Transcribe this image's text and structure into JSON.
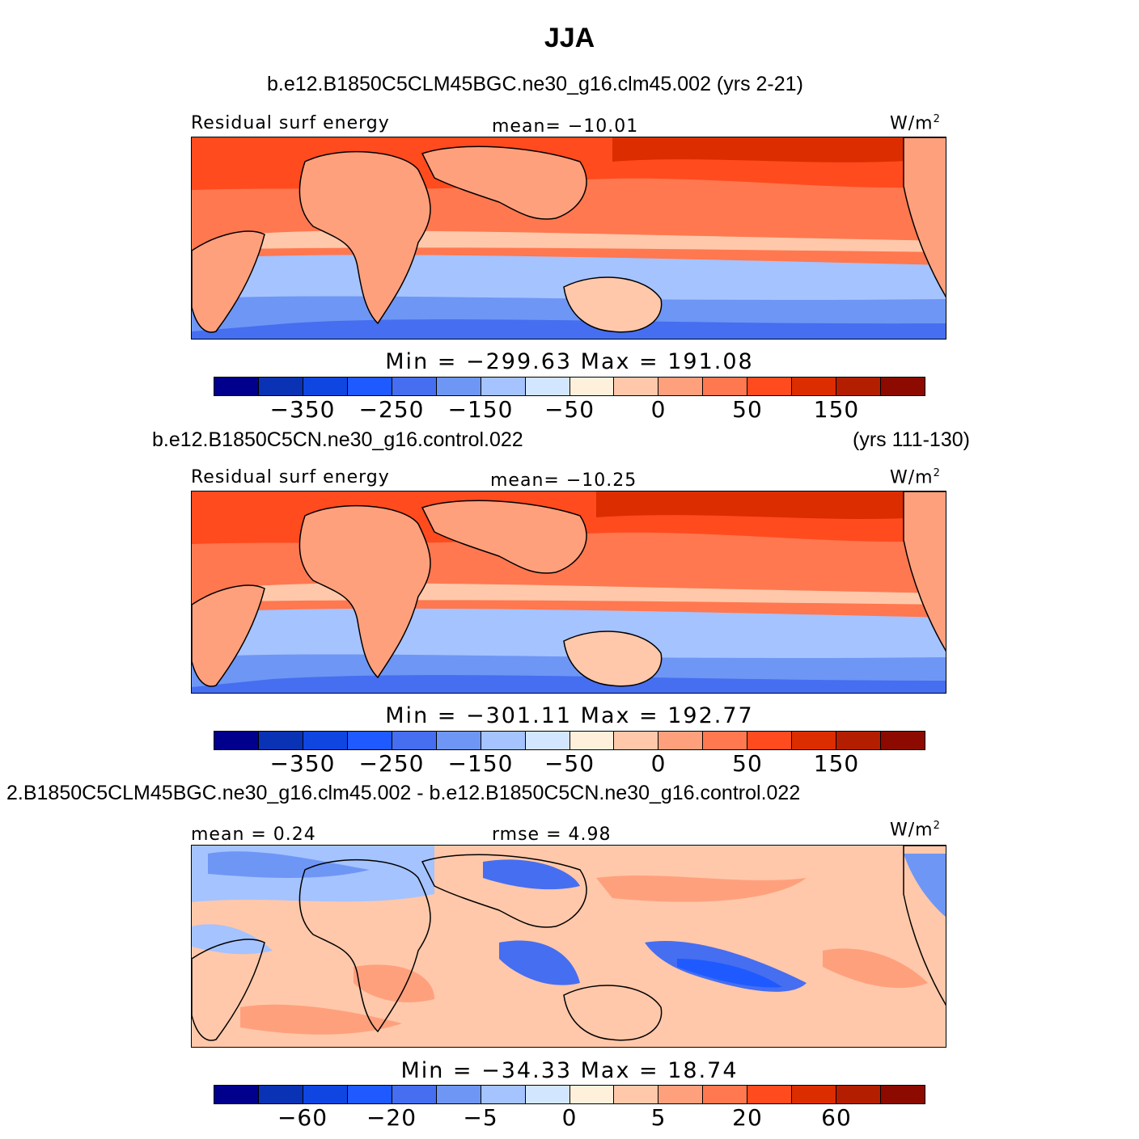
{
  "title": "JJA",
  "colors": [
    "#00008c",
    "#0a32b4",
    "#0f46e1",
    "#1e5aff",
    "#466ef0",
    "#6e96f5",
    "#a5c3ff",
    "#d2e6ff",
    "#fff0dc",
    "#ffc8aa",
    "#ffa07d",
    "#ff7850",
    "#ff4b1e",
    "#dc2d00",
    "#b41e00",
    "#8c0a00"
  ],
  "panels": [
    {
      "caption_left": "b.e12.B1850C5CLM45BGC.ne30_g16.clm45.002 (yrs 2-21)",
      "caption_right": "",
      "var_label": "Residual surf energy",
      "stat_label": "mean= −10.01",
      "units_base": "W/m",
      "units_exp": "2",
      "minmax": "Min = −299.63 Max = 191.08",
      "tick_labels": [
        "−350",
        "−250",
        "−150",
        "−50",
        "0",
        "50",
        "150"
      ]
    },
    {
      "caption_left": "b.e12.B1850C5CN.ne30_g16.control.022",
      "caption_right": "(yrs 111-130)",
      "var_label": "Residual surf energy",
      "stat_label": "mean= −10.25",
      "units_base": "W/m",
      "units_exp": "2",
      "minmax": "Min = −301.11 Max = 192.77",
      "tick_labels": [
        "−350",
        "−250",
        "−150",
        "−50",
        "0",
        "50",
        "150"
      ]
    },
    {
      "caption_left": "2.B1850C5CLM45BGC.ne30_g16.clm45.002 - b.e12.B1850C5CN.ne30_g16.control.022",
      "caption_right": "",
      "var_label": "mean =   0.24",
      "stat_label": "rmse =   4.98",
      "units_base": "W/m",
      "units_exp": "2",
      "minmax": "Min = −34.33 Max =  18.74",
      "tick_labels": [
        "−60",
        "−20",
        "−5",
        "0",
        "5",
        "20",
        "60"
      ]
    }
  ]
}
